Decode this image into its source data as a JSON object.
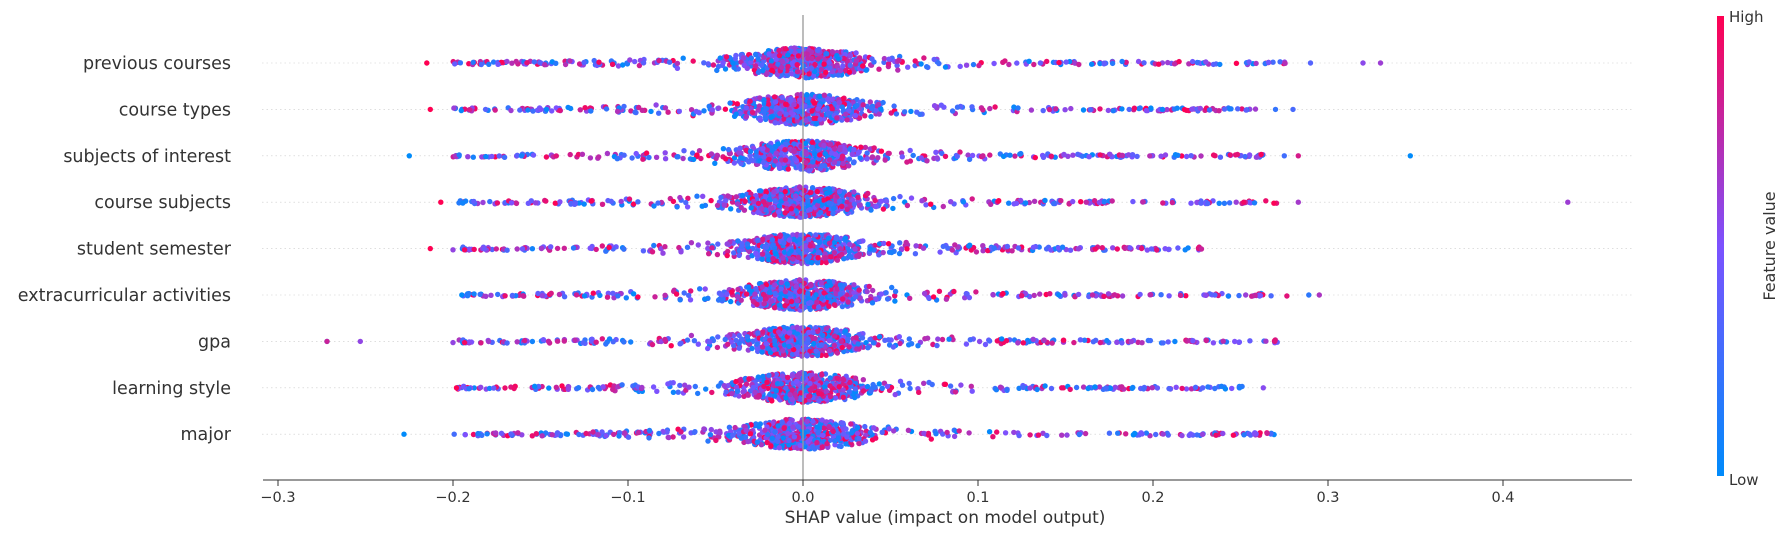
{
  "chart_data": {
    "type": "scatter",
    "subtype": "shap-beeswarm",
    "xlabel": "SHAP value (impact on model output)",
    "xlim": [
      -0.31,
      0.47
    ],
    "xticks": [
      -0.3,
      -0.2,
      -0.1,
      0.0,
      0.1,
      0.2,
      0.3,
      0.4
    ],
    "xtick_labels": [
      "−0.3",
      "−0.2",
      "−0.1",
      "0.0",
      "0.1",
      "0.2",
      "0.3",
      "0.4"
    ],
    "features": [
      {
        "name": "previous courses",
        "min": -0.215,
        "max": 0.33,
        "outliers": [
          0.29,
          0.32,
          0.33
        ],
        "min_color": "high"
      },
      {
        "name": "course types",
        "min": -0.213,
        "max": 0.28,
        "outliers": [
          0.27,
          0.28
        ],
        "min_color": "high"
      },
      {
        "name": "subjects of interest",
        "min": -0.225,
        "max": 0.347,
        "outliers": [
          0.275,
          0.283,
          0.347
        ],
        "min_color": "low"
      },
      {
        "name": "course subjects",
        "min": -0.207,
        "max": 0.437,
        "outliers": [
          0.283,
          0.437
        ],
        "min_color": "high"
      },
      {
        "name": "student semester",
        "min": -0.213,
        "max": 0.229,
        "outliers": [],
        "min_color": "high"
      },
      {
        "name": "extracurricular activities",
        "min": -0.195,
        "max": 0.295,
        "outliers": [
          0.289,
          0.295
        ],
        "min_color": "low"
      },
      {
        "name": "gpa",
        "min": -0.272,
        "max": 0.273,
        "outliers": [
          -0.272,
          -0.253
        ],
        "min_color": "low"
      },
      {
        "name": "learning style",
        "min": -0.198,
        "max": 0.263,
        "outliers": [
          0.263
        ],
        "min_color": "high"
      },
      {
        "name": "major",
        "min": -0.228,
        "max": 0.273,
        "outliers": [],
        "min_color": "low"
      }
    ],
    "colorbar": {
      "label": "Feature value",
      "high_label": "High",
      "low_label": "Low",
      "low_color": "#008bfb",
      "mid_color": "#7c52ff",
      "high_color": "#ff0052"
    }
  }
}
